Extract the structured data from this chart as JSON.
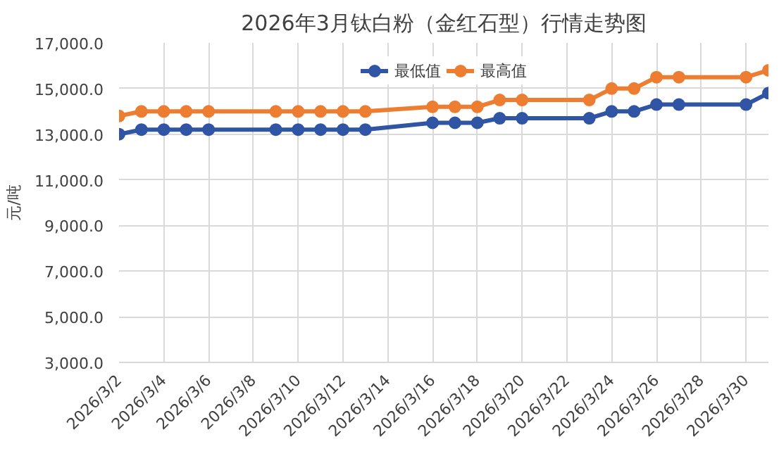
{
  "chart_data": {
    "type": "line",
    "title": "2026年3月钛白粉（金红石型）行情走势图",
    "ylabel": "元/吨",
    "x": [
      "2026-03-02",
      "2026-03-03",
      "2026-03-04",
      "2026-03-05",
      "2026-03-06",
      "2026-03-09",
      "2026-03-10",
      "2026-03-11",
      "2026-03-12",
      "2026-03-13",
      "2026-03-16",
      "2026-03-17",
      "2026-03-18",
      "2026-03-19",
      "2026-03-20",
      "2026-03-23",
      "2026-03-24",
      "2026-03-25",
      "2026-03-26",
      "2026-03-27",
      "2026-03-30",
      "2026-03-31"
    ],
    "series": [
      {
        "name": "最低值",
        "color": "#2f55a4",
        "values": [
          13000,
          13200,
          13200,
          13200,
          13200,
          13200,
          13200,
          13200,
          13200,
          13200,
          13500,
          13500,
          13500,
          13700,
          13700,
          13700,
          14000,
          14000,
          14300,
          14300,
          14300,
          14800
        ]
      },
      {
        "name": "最高值",
        "color": "#ed7d31",
        "values": [
          13800,
          14000,
          14000,
          14000,
          14000,
          14000,
          14000,
          14000,
          14000,
          14000,
          14200,
          14200,
          14200,
          14500,
          14500,
          14500,
          15000,
          15000,
          15500,
          15500,
          15500,
          15800
        ]
      }
    ],
    "xlim": [
      "2026-03-02",
      "2026-03-31"
    ],
    "xticks": [
      {
        "value": "2026-03-02",
        "label": "2026/3/2"
      },
      {
        "value": "2026-03-04",
        "label": "2026/3/4"
      },
      {
        "value": "2026-03-06",
        "label": "2026/3/6"
      },
      {
        "value": "2026-03-08",
        "label": "2026/3/8"
      },
      {
        "value": "2026-03-10",
        "label": "2026/3/10"
      },
      {
        "value": "2026-03-12",
        "label": "2026/3/12"
      },
      {
        "value": "2026-03-14",
        "label": "2026/3/14"
      },
      {
        "value": "2026-03-16",
        "label": "2026/3/16"
      },
      {
        "value": "2026-03-18",
        "label": "2026/3/18"
      },
      {
        "value": "2026-03-20",
        "label": "2026/3/20"
      },
      {
        "value": "2026-03-22",
        "label": "2026/3/22"
      },
      {
        "value": "2026-03-24",
        "label": "2026/3/24"
      },
      {
        "value": "2026-03-26",
        "label": "2026/3/26"
      },
      {
        "value": "2026-03-28",
        "label": "2026/3/28"
      },
      {
        "value": "2026-03-30",
        "label": "2026/3/30"
      }
    ],
    "ylim": [
      3000,
      17000
    ],
    "yticks": [
      {
        "value": 3000,
        "label": "3,000.0"
      },
      {
        "value": 5000,
        "label": "5,000.0"
      },
      {
        "value": 7000,
        "label": "7,000.0"
      },
      {
        "value": 9000,
        "label": "9,000.0"
      },
      {
        "value": 11000,
        "label": "11,000.0"
      },
      {
        "value": 13000,
        "label": "13,000.0"
      },
      {
        "value": 15000,
        "label": "15,000.0"
      },
      {
        "value": 17000,
        "label": "17,000.0"
      }
    ],
    "grid": true,
    "legend": "top",
    "marker": "circle",
    "line_style": "solid"
  }
}
